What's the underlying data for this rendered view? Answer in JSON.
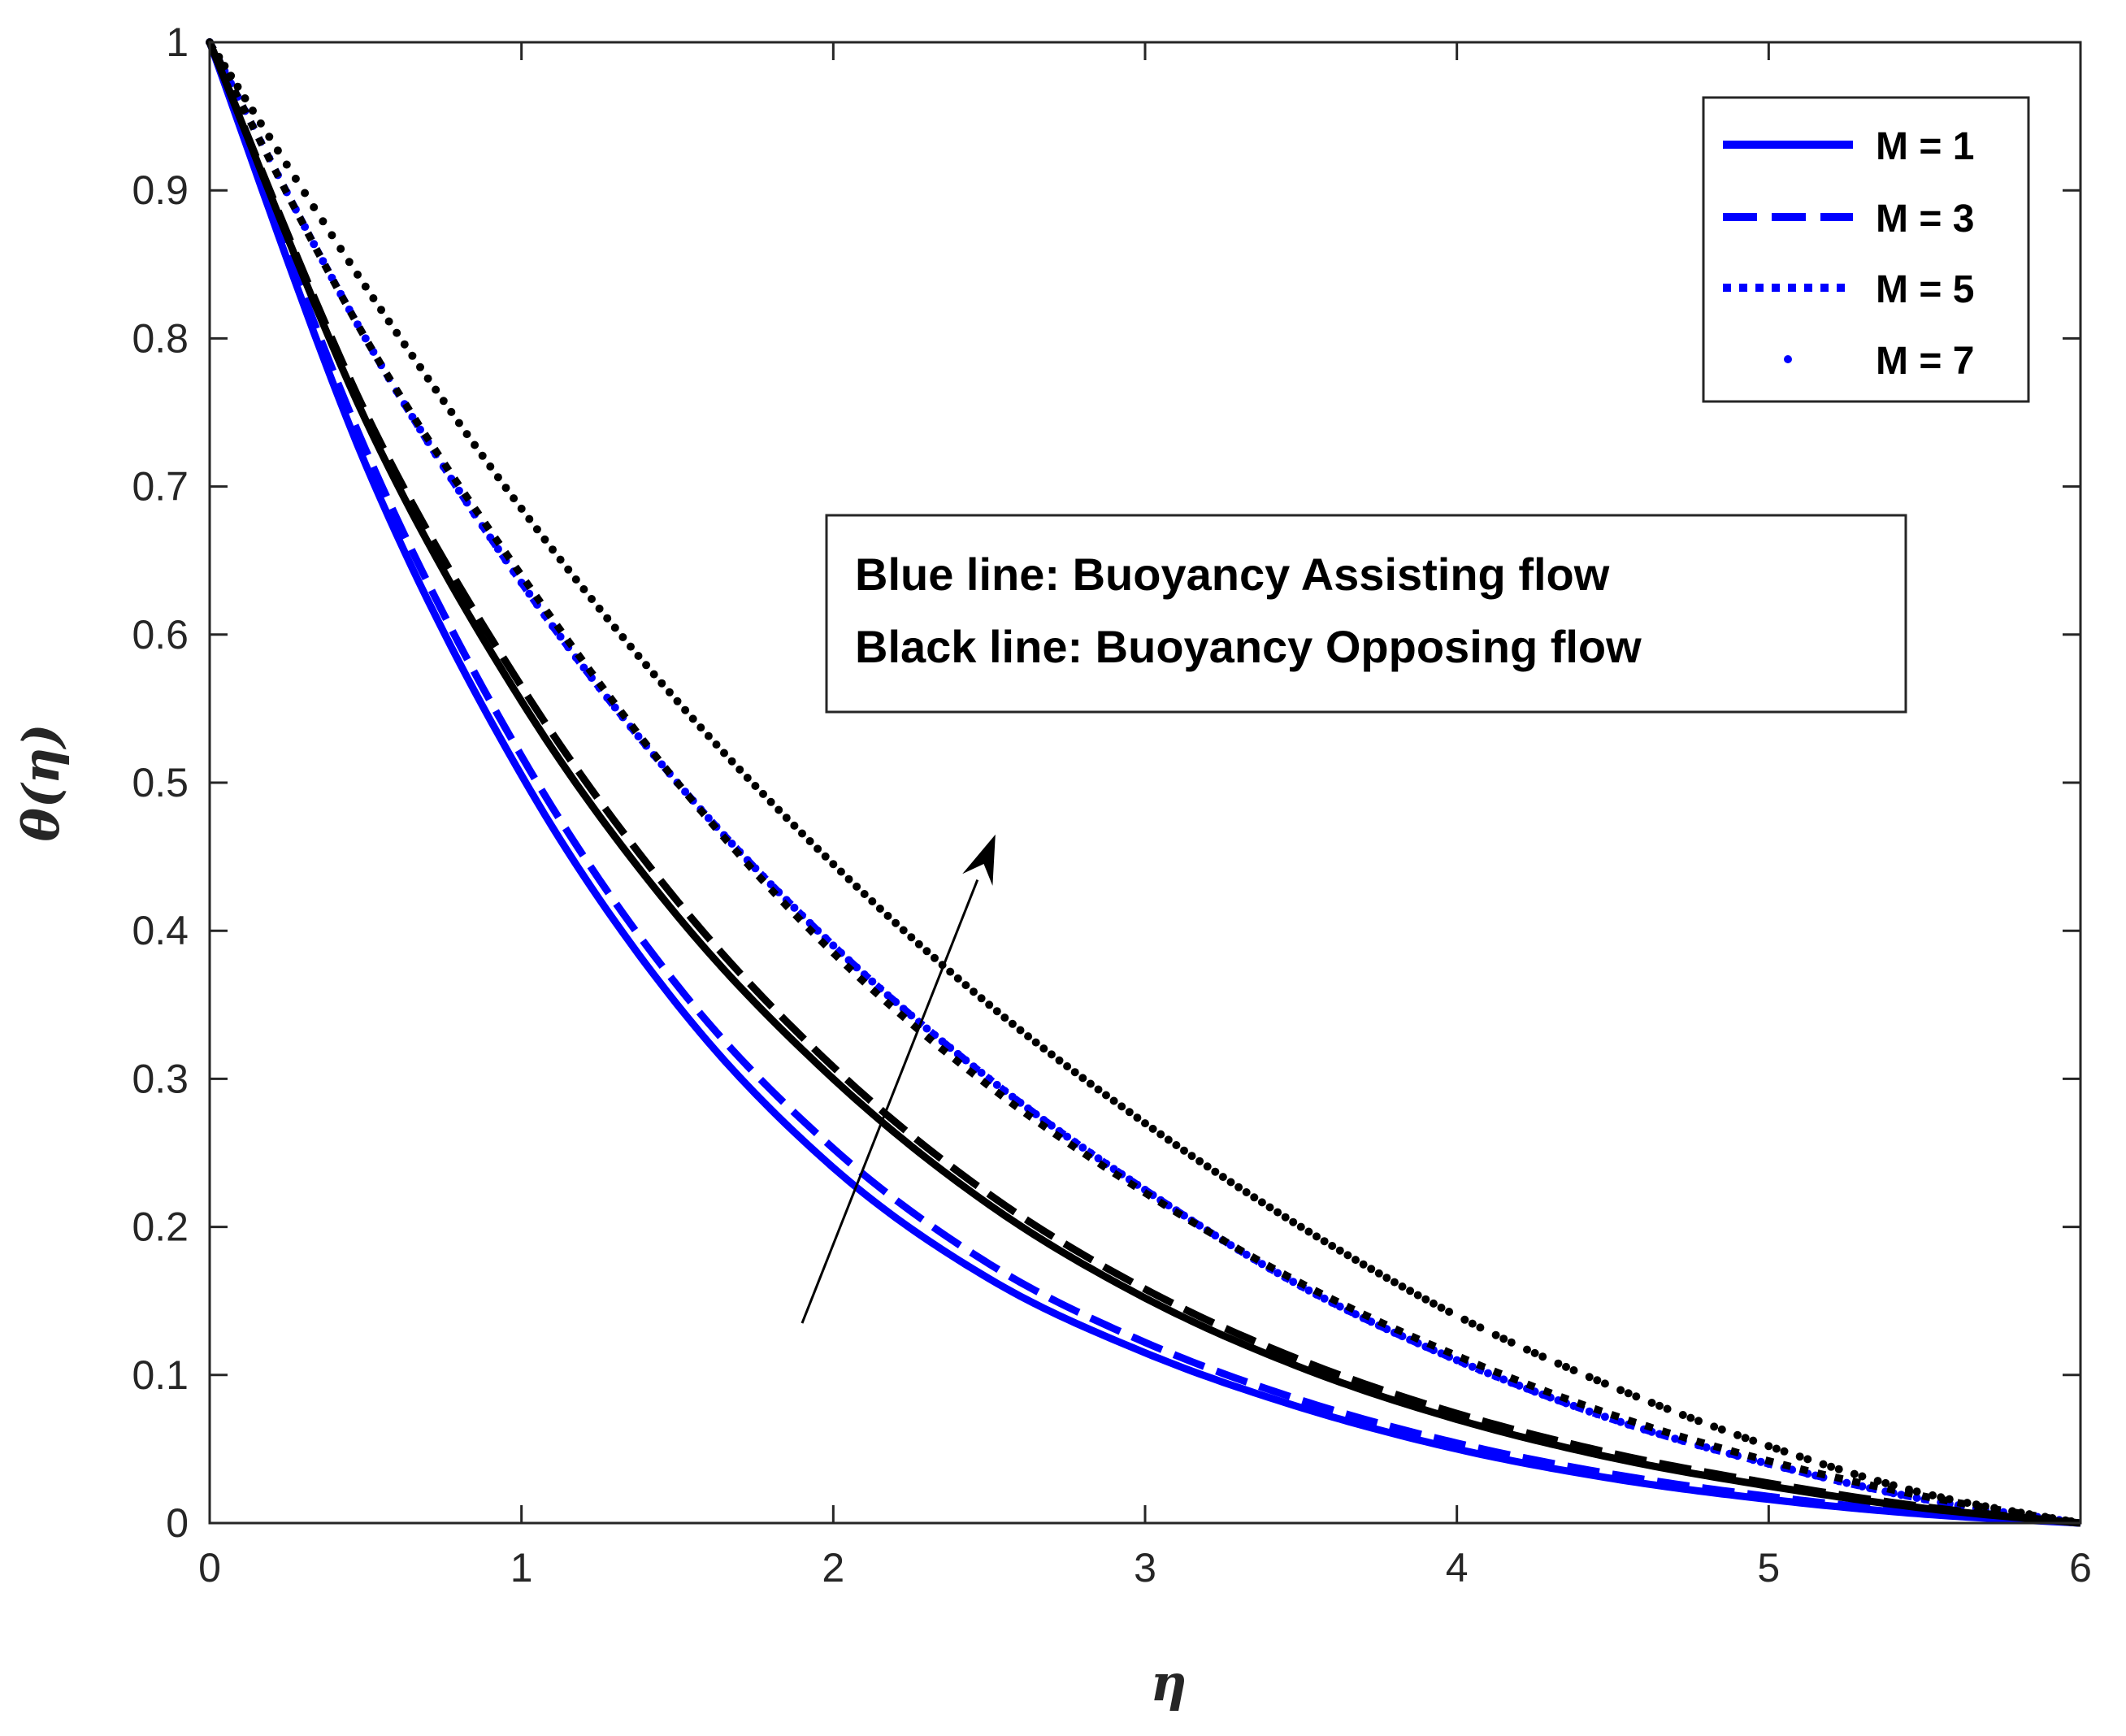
{
  "chart_data": {
    "type": "line",
    "xlabel": "η",
    "ylabel": "θ(η)",
    "xlim": [
      0,
      6
    ],
    "ylim": [
      0,
      1
    ],
    "x_ticks": [
      "0",
      "1",
      "2",
      "3",
      "4",
      "5",
      "6"
    ],
    "y_ticks": [
      "0",
      "0.1",
      "0.2",
      "0.3",
      "0.4",
      "0.5",
      "0.6",
      "0.7",
      "0.8",
      "0.9",
      "1"
    ],
    "grid": false,
    "legend_position": "top-right",
    "legend": [
      {
        "label": "M = 1",
        "style": "solid"
      },
      {
        "label": "M = 3",
        "style": "dashed"
      },
      {
        "label": "M = 5",
        "style": "dotted"
      },
      {
        "label": "M = 7",
        "style": "point"
      }
    ],
    "annotation": {
      "lines": [
        "Blue line: Buoyancy Assisting flow",
        "Black line: Buoyancy Opposing flow"
      ],
      "arrow": {
        "from": [
          1.9,
          0.135
        ],
        "to": [
          2.52,
          0.465
        ]
      }
    },
    "x": [
      0,
      0.5,
      1,
      1.5,
      2,
      2.5,
      3,
      3.5,
      4,
      4.5,
      5,
      5.5,
      6
    ],
    "series": [
      {
        "group": "assisting",
        "M": 1,
        "style": "solid",
        "color": "#0000ff",
        "values": [
          1,
          0.715,
          0.505,
          0.35,
          0.24,
          0.165,
          0.115,
          0.078,
          0.05,
          0.03,
          0.016,
          0.006,
          0
        ]
      },
      {
        "group": "assisting",
        "M": 3,
        "style": "dashed",
        "color": "#0000ff",
        "values": [
          1,
          0.725,
          0.518,
          0.363,
          0.253,
          0.175,
          0.122,
          0.083,
          0.054,
          0.033,
          0.018,
          0.007,
          0
        ]
      },
      {
        "group": "assisting",
        "M": 5,
        "style": "dotted",
        "color": "#0000ff",
        "values": [
          1,
          0.8,
          0.635,
          0.5,
          0.39,
          0.3,
          0.225,
          0.16,
          0.11,
          0.07,
          0.04,
          0.016,
          0
        ]
      },
      {
        "group": "assisting",
        "M": 7,
        "style": "point",
        "color": "#0000ff",
        "values": [
          1,
          0.8,
          0.635,
          0.5,
          0.39,
          0.3,
          0.225,
          0.16,
          0.11,
          0.07,
          0.04,
          0.016,
          0
        ]
      },
      {
        "group": "opposing",
        "M": 1,
        "style": "solid",
        "color": "#000000",
        "values": [
          1,
          0.745,
          0.555,
          0.41,
          0.3,
          0.215,
          0.152,
          0.105,
          0.07,
          0.044,
          0.025,
          0.01,
          0
        ]
      },
      {
        "group": "opposing",
        "M": 3,
        "style": "dashed",
        "color": "#000000",
        "values": [
          1,
          0.75,
          0.565,
          0.42,
          0.308,
          0.222,
          0.158,
          0.11,
          0.074,
          0.047,
          0.027,
          0.011,
          0
        ]
      },
      {
        "group": "opposing",
        "M": 5,
        "style": "dotted",
        "color": "#000000",
        "values": [
          1,
          0.8,
          0.64,
          0.5,
          0.385,
          0.295,
          0.223,
          0.162,
          0.113,
          0.073,
          0.042,
          0.018,
          0
        ]
      },
      {
        "group": "opposing",
        "M": 7,
        "style": "point",
        "color": "#000000",
        "values": [
          1,
          0.835,
          0.685,
          0.555,
          0.445,
          0.35,
          0.27,
          0.2,
          0.14,
          0.092,
          0.052,
          0.02,
          0
        ]
      }
    ]
  }
}
